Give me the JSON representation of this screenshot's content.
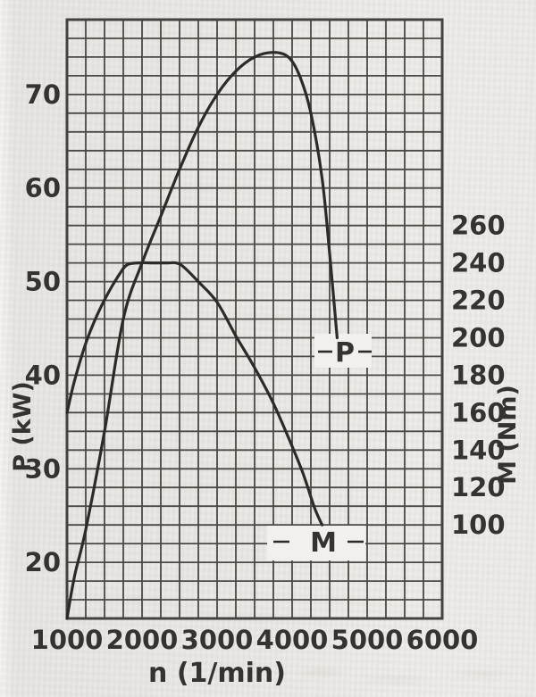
{
  "colors": {
    "paper": "#e9e7e4",
    "grid": "#4b4945",
    "frame": "#44423e",
    "curve": "#2d2b28",
    "text": "#353230",
    "label_patch": "#f1f0ee"
  },
  "chart_data": {
    "type": "line",
    "title": "",
    "xlabel": "n (1/min)",
    "x_range": [
      1000,
      6000
    ],
    "x_ticks": [
      1000,
      2000,
      3000,
      4000,
      5000,
      6000
    ],
    "x_minor_step": 250,
    "grid": {
      "style": "graph-paper",
      "visible": true
    },
    "legend_position": "inline-curve-labels",
    "axes": {
      "left": {
        "label": "P (kW)",
        "ticks": [
          20,
          30,
          40,
          50,
          60,
          70
        ],
        "range": [
          14,
          78
        ],
        "minor_step": 2
      },
      "right": {
        "label": "M (Nm)",
        "ticks": [
          100,
          120,
          140,
          160,
          180,
          200,
          220,
          240,
          260
        ],
        "range": [
          50,
          370
        ],
        "minor_step": 10
      }
    },
    "series": [
      {
        "name": "power",
        "label": "P",
        "axis": "left",
        "unit": "kW",
        "points": [
          [
            1000,
            14
          ],
          [
            1100,
            18.5
          ],
          [
            1250,
            23.5
          ],
          [
            1500,
            34
          ],
          [
            1750,
            46
          ],
          [
            2000,
            52
          ],
          [
            2250,
            57
          ],
          [
            2500,
            62
          ],
          [
            2750,
            66.5
          ],
          [
            3000,
            70
          ],
          [
            3250,
            72.5
          ],
          [
            3500,
            74
          ],
          [
            3750,
            74.5
          ],
          [
            3950,
            74
          ],
          [
            4100,
            72
          ],
          [
            4250,
            68
          ],
          [
            4400,
            61
          ],
          [
            4500,
            53
          ],
          [
            4600,
            44
          ]
        ]
      },
      {
        "name": "torque",
        "label": "M",
        "axis": "right",
        "unit": "Nm",
        "points": [
          [
            1000,
            160
          ],
          [
            1100,
            177
          ],
          [
            1250,
            197
          ],
          [
            1400,
            212
          ],
          [
            1550,
            224
          ],
          [
            1700,
            234
          ],
          [
            1800,
            239
          ],
          [
            1950,
            240
          ],
          [
            2150,
            240
          ],
          [
            2350,
            240
          ],
          [
            2450,
            240
          ],
          [
            2550,
            238
          ],
          [
            2750,
            230
          ],
          [
            3000,
            219
          ],
          [
            3250,
            201
          ],
          [
            3500,
            184
          ],
          [
            3750,
            165
          ],
          [
            4000,
            142
          ],
          [
            4150,
            127
          ],
          [
            4300,
            109
          ],
          [
            4400,
            100
          ]
        ]
      }
    ]
  }
}
